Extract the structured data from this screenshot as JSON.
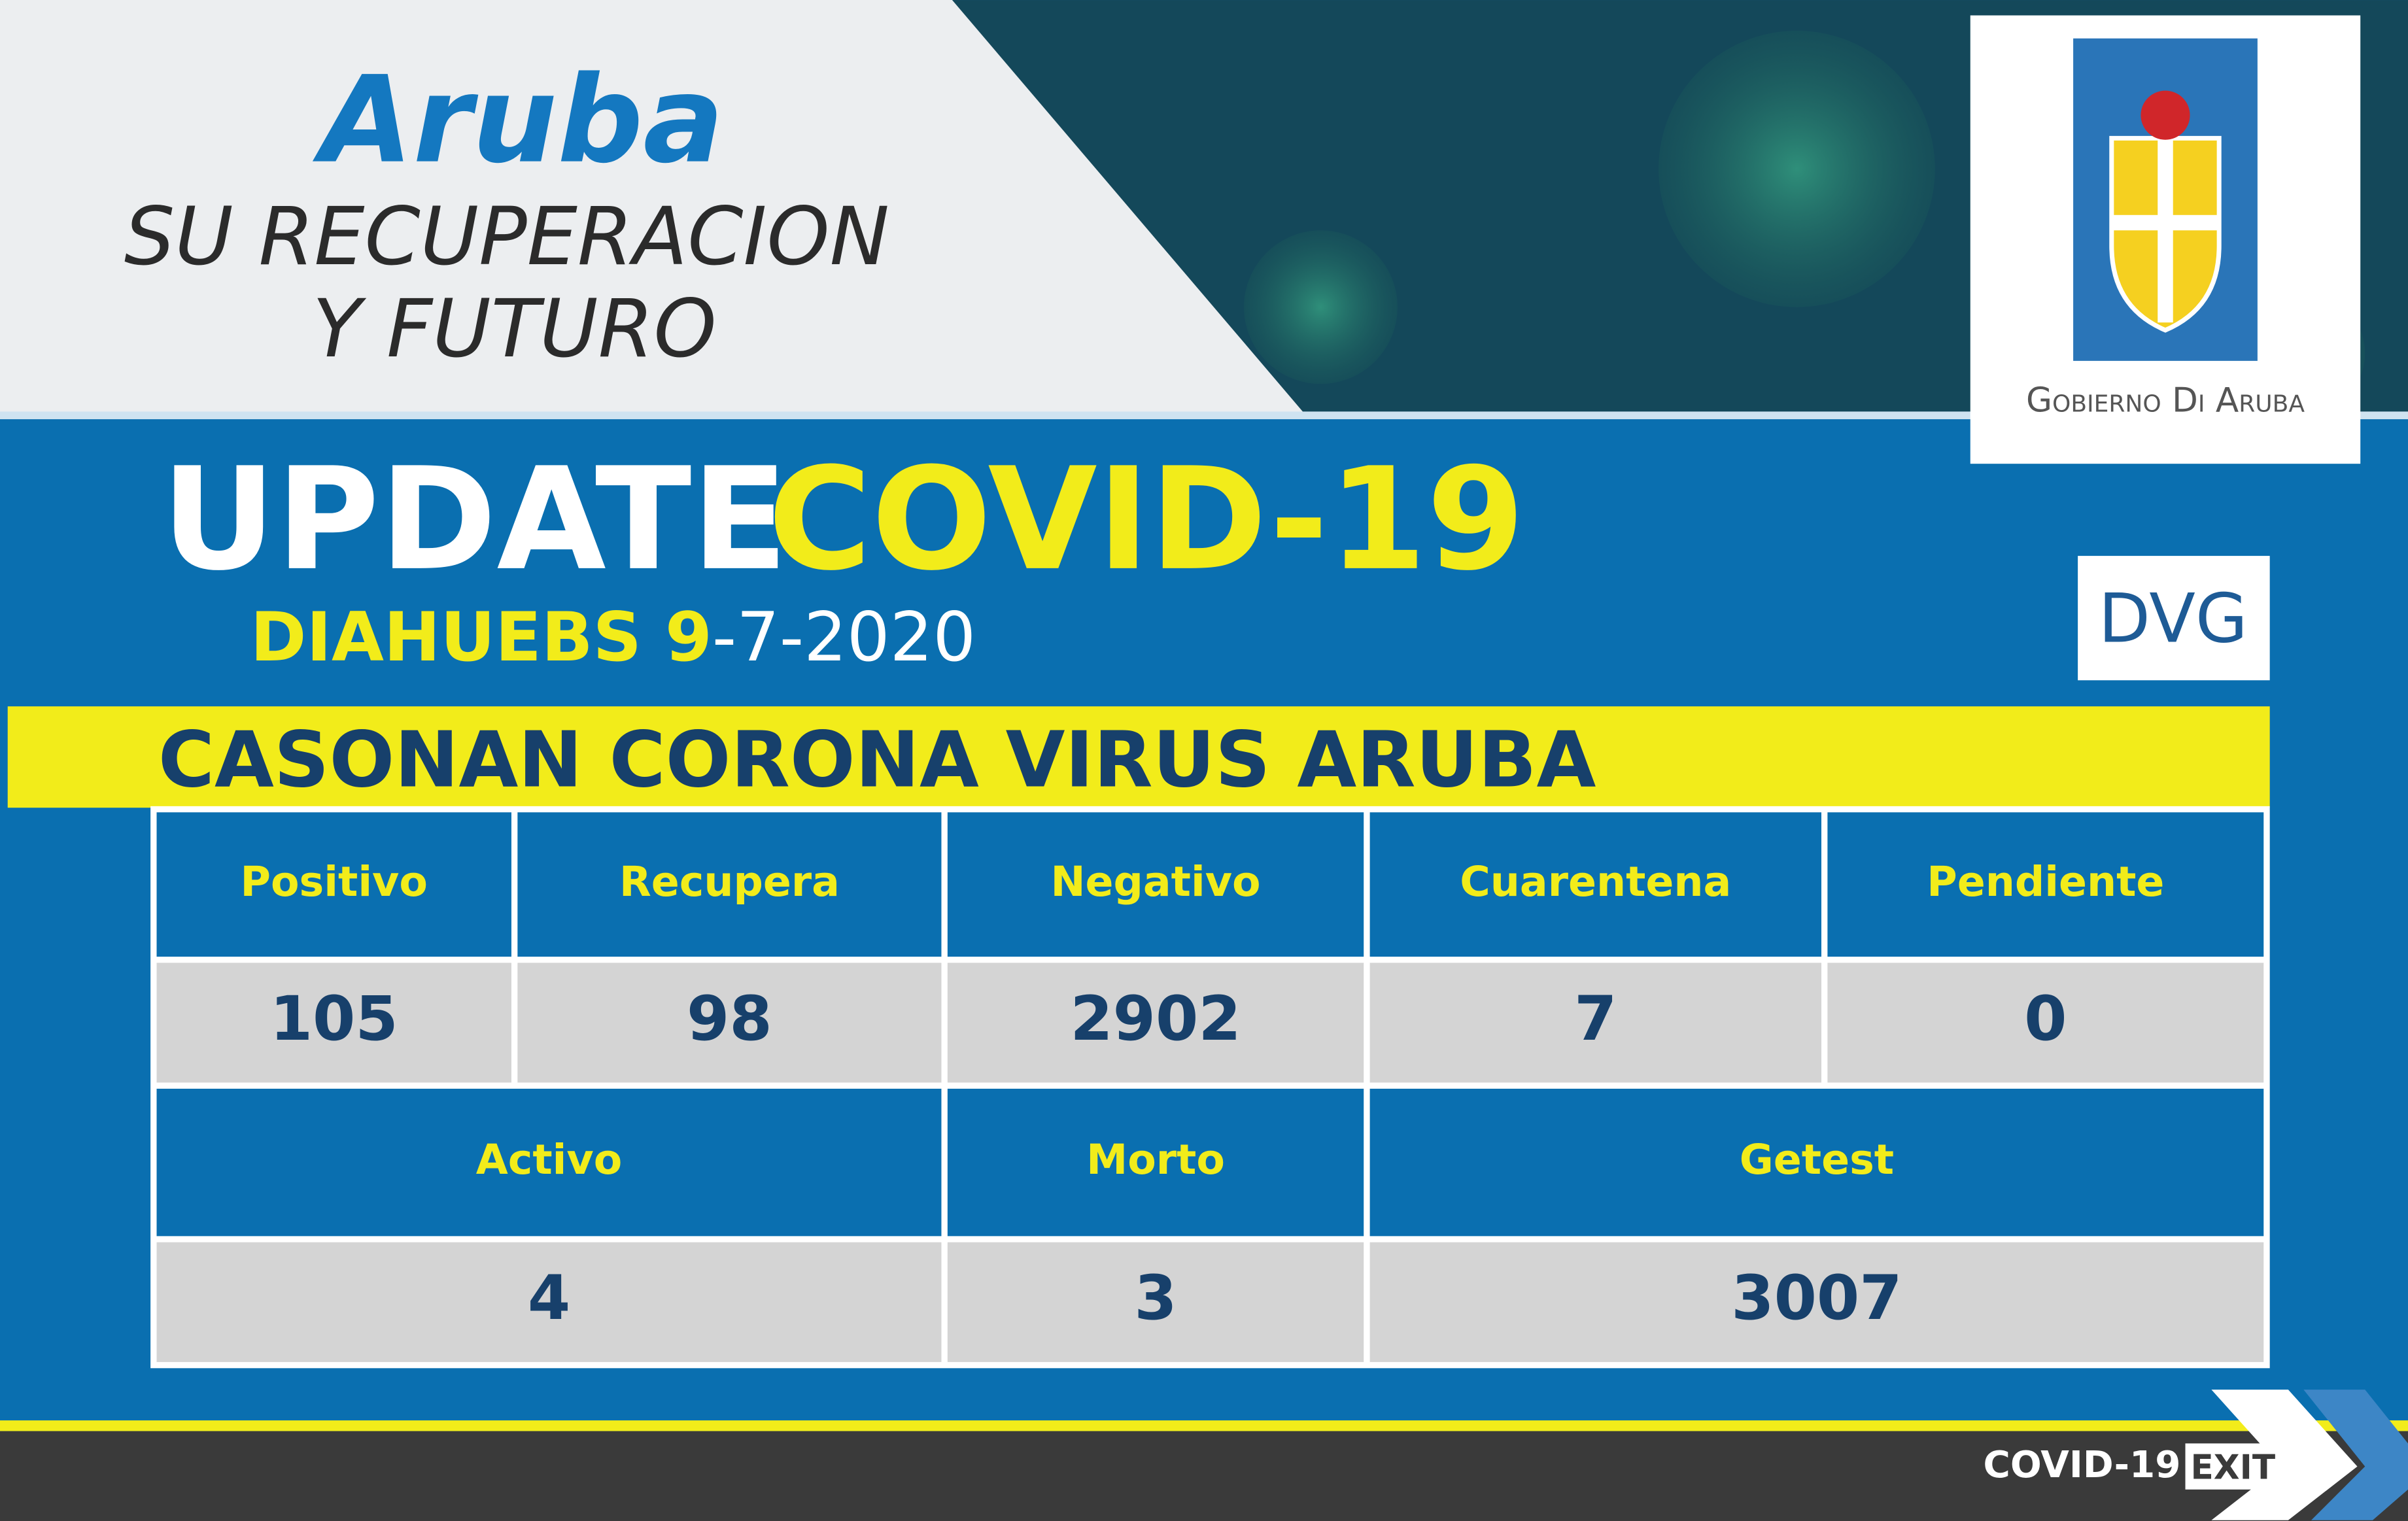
{
  "header": {
    "brand": "Aruba",
    "tagline": [
      "SU RECUPERACION",
      "Y FUTURO"
    ],
    "logo_text": "Gobierno Di Aruba",
    "badge": "DVG"
  },
  "title": {
    "word1": "UPDATE",
    "word2": "COVID-19",
    "date_day": "DIAHUEBS 9",
    "date_rest": "-7-2020"
  },
  "banner": "CASONAN CORONA VIRUS ARUBA",
  "table": {
    "rows": [
      [
        "Positivo",
        "Recupera",
        "Negativo",
        "Cuarentena",
        "Pendiente"
      ],
      [
        105,
        98,
        2902,
        7,
        0
      ],
      [
        "Activo",
        "Morto",
        "Getest"
      ],
      [
        4,
        3,
        3007
      ]
    ]
  },
  "footer": {
    "label": "COVID-19",
    "tag": "EXIT"
  }
}
